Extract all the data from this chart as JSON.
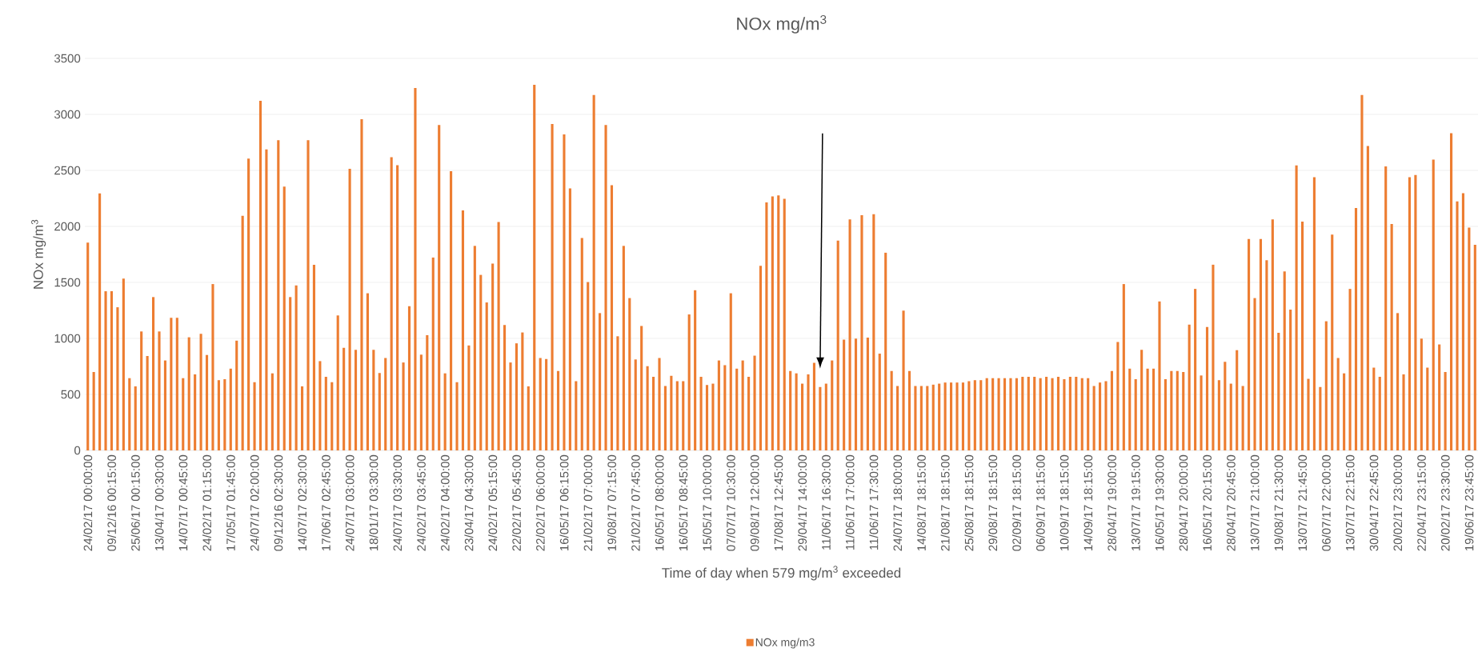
{
  "chart_data": {
    "type": "bar",
    "title": "NOx mg/m$^{3}$",
    "xlabel": "Time of day when 579 mg/m$^{3}$ exceeded",
    "ylabel": "NOx mg/m$^{3}$",
    "categories": [
      "24/02/17 00:00:00",
      null,
      null,
      null,
      "09/12/16 00:15:00",
      null,
      null,
      null,
      "25/06/17 00:15:00",
      null,
      null,
      null,
      "13/04/17 00:30:00",
      null,
      null,
      null,
      "14/07/17 00:45:00",
      null,
      null,
      null,
      "24/02/17 01:15:00",
      null,
      null,
      null,
      "17/05/17 01:45:00",
      null,
      null,
      null,
      "24/07/17 02:00:00",
      null,
      null,
      null,
      "09/12/16 02:30:00",
      null,
      null,
      null,
      "14/07/17 02:30:00",
      null,
      null,
      null,
      "17/06/17 02:45:00",
      null,
      null,
      null,
      "24/07/17 03:00:00",
      null,
      null,
      null,
      "18/01/17 03:30:00",
      null,
      null,
      null,
      "24/07/17 03:30:00",
      null,
      null,
      null,
      "24/02/17 03:45:00",
      null,
      null,
      null,
      "24/02/17 04:00:00",
      null,
      null,
      null,
      "23/04/17 04:30:00",
      null,
      null,
      null,
      "24/02/17 05:15:00",
      null,
      null,
      null,
      "22/02/17 05:45:00",
      null,
      null,
      null,
      "22/02/17 06:00:00",
      null,
      null,
      null,
      "16/05/17 06:15:00",
      null,
      null,
      null,
      "21/02/17 07:00:00",
      null,
      null,
      null,
      "19/08/17 07:15:00",
      null,
      null,
      null,
      "21/02/17 07:45:00",
      null,
      null,
      null,
      "16/05/17 08:00:00",
      null,
      null,
      null,
      "16/05/17 08:45:00",
      null,
      null,
      null,
      "15/05/17 10:00:00",
      null,
      null,
      null,
      "07/07/17 10:30:00",
      null,
      null,
      null,
      "09/08/17 12:00:00",
      null,
      null,
      null,
      "17/08/17 12:45:00",
      null,
      null,
      null,
      "29/04/17 14:00:00",
      null,
      null,
      null,
      "11/06/17 16:30:00",
      null,
      null,
      null,
      "11/06/17 17:00:00",
      null,
      null,
      null,
      "11/06/17 17:30:00",
      null,
      null,
      null,
      "24/07/17 18:00:00",
      null,
      null,
      null,
      "14/08/17 18:15:00",
      null,
      null,
      null,
      "21/08/17 18:15:00",
      null,
      null,
      null,
      "25/08/17 18:15:00",
      null,
      null,
      null,
      "29/08/17 18:15:00",
      null,
      null,
      null,
      "02/09/17 18:15:00",
      null,
      null,
      null,
      "06/09/17 18:15:00",
      null,
      null,
      null,
      "10/09/17 18:15:00",
      null,
      null,
      null,
      "14/09/17 18:15:00",
      null,
      null,
      null,
      "28/04/17 19:00:00",
      null,
      null,
      null,
      "13/07/17 19:15:00",
      null,
      null,
      null,
      "16/05/17 19:30:00",
      null,
      null,
      null,
      "28/04/17 20:00:00",
      null,
      null,
      null,
      "16/05/17 20:15:00",
      null,
      null,
      null,
      "28/04/17 20:45:00",
      null,
      null,
      null,
      "13/07/17 21:00:00",
      null,
      null,
      null,
      "19/08/17 21:30:00",
      null,
      null,
      null,
      "13/07/17 21:45:00",
      null,
      null,
      null,
      "06/07/17 22:00:00",
      null,
      null,
      null,
      "13/07/17 22:15:00",
      null,
      null,
      null,
      "30/04/17 22:45:00",
      null,
      null,
      null,
      "20/02/17 23:00:00",
      null,
      null,
      null,
      "22/04/17 23:15:00",
      null,
      null,
      null,
      "20/02/17 23:30:00",
      null,
      null,
      null,
      "19/06/17 23:45:00",
      null
    ],
    "series": [
      {
        "name": "NOx mg/m3",
        "color": "#ed7d31",
        "values": [
          1856,
          700,
          2294,
          1421,
          1421,
          1278,
          1534,
          645,
          572,
          1062,
          843,
          1369,
          1062,
          803,
          1184,
          1184,
          645,
          1010,
          679,
          1041,
          852,
          1485,
          627,
          636,
          730,
          980,
          2094,
          2605,
          609,
          3122,
          2687,
          688,
          2769,
          2355,
          1369,
          1473,
          572,
          2769,
          1658,
          797,
          657,
          609,
          1205,
          916,
          2514,
          898,
          2958,
          1403,
          898,
          691,
          825,
          2617,
          2547,
          785,
          1287,
          3235,
          855,
          1029,
          1722,
          2906,
          688,
          2492,
          609,
          2142,
          937,
          1826,
          1567,
          1321,
          1668,
          2039,
          1120,
          785,
          956,
          1053,
          572,
          3265,
          825,
          816,
          2915,
          709,
          2821,
          2340,
          618,
          1896,
          1503,
          3174,
          1226,
          2906,
          2368,
          1019,
          1826,
          1360,
          812,
          1111,
          752,
          657,
          825,
          575,
          666,
          618,
          618,
          1214,
          1430,
          657,
          584,
          596,
          803,
          761,
          1403,
          730,
          803,
          657,
          846,
          1649,
          2215,
          2267,
          2276,
          2246,
          709,
          688,
          596,
          679,
          782,
          566,
          596,
          803,
          1874,
          989,
          2063,
          998,
          2100,
          1007,
          2109,
          864,
          1765,
          709,
          575,
          1248,
          709,
          575,
          575,
          575,
          587,
          596,
          606,
          606,
          606,
          606,
          618,
          627,
          627,
          645,
          645,
          645,
          645,
          645,
          645,
          657,
          657,
          657,
          645,
          657,
          645,
          657,
          636,
          657,
          657,
          645,
          645,
          575,
          606,
          618,
          709,
          968,
          1485,
          730,
          636,
          898,
          730,
          730,
          1330,
          636,
          709,
          709,
          700,
          1123,
          1442,
          669,
          1102,
          1658,
          627,
          791,
          596,
          895,
          575,
          1887,
          1360,
          1887,
          1698,
          2063,
          1050,
          1598,
          1257,
          2544,
          2042,
          639,
          2440,
          566,
          1153,
          1926,
          825,
          688,
          1442,
          2164,
          3174,
          2717,
          739,
          657,
          2535,
          2021,
          1226,
          679,
          2440,
          2459,
          998,
          739,
          2596,
          946,
          700,
          2833,
          2224,
          2297,
          1990,
          1835
        ]
      }
    ],
    "ylim": [
      0,
      3500
    ],
    "yticks": [
      0,
      500,
      1000,
      1500,
      2000,
      2500,
      3000,
      3500
    ],
    "grid": "y",
    "legend": "bottom"
  }
}
